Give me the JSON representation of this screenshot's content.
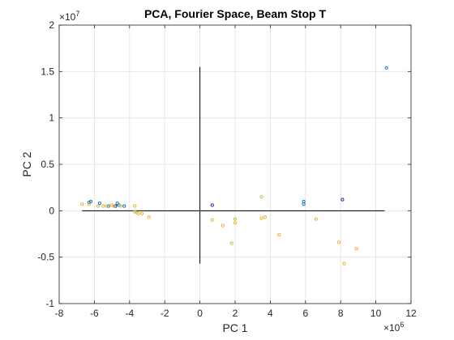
{
  "chart_data": {
    "type": "scatter",
    "title": "PCA, Fourier Space, Beam Stop T",
    "xlabel": "PC 1",
    "ylabel": "PC 2",
    "x_exponent_label": "×10",
    "x_exponent": "6",
    "y_exponent_label": "×10",
    "y_exponent": "7",
    "xlim": [
      -8,
      12
    ],
    "ylim": [
      -1,
      2
    ],
    "x_ticks": [
      -8,
      -6,
      -4,
      -2,
      0,
      2,
      4,
      6,
      8,
      10,
      12
    ],
    "y_ticks": [
      -1,
      -0.5,
      0,
      0.5,
      1,
      1.5,
      2
    ],
    "x_tick_labels": [
      "-8",
      "-6",
      "-4",
      "-2",
      "0",
      "2",
      "4",
      "6",
      "8",
      "10",
      "12"
    ],
    "y_tick_labels": [
      "-1",
      "-0.5",
      "0",
      "0.5",
      "1",
      "1.5",
      "2"
    ],
    "grid": true,
    "reference_lines": [
      {
        "orientation": "horizontal",
        "y": 0,
        "x_from": -6.7,
        "x_to": 10.5
      },
      {
        "orientation": "vertical",
        "x": 0,
        "y_from": -0.57,
        "y_to": 1.55
      }
    ],
    "series": [
      {
        "color": "#0072BD",
        "points": [
          [
            -6.3,
            0.09
          ],
          [
            -6.2,
            0.1
          ],
          [
            -5.7,
            0.08
          ],
          [
            -5.2,
            0.05
          ],
          [
            -4.7,
            0.08
          ],
          [
            -4.6,
            0.06
          ],
          [
            -4.3,
            0.05
          ],
          [
            5.9,
            0.07
          ],
          [
            5.9,
            0.1
          ],
          [
            10.6,
            1.54
          ]
        ]
      },
      {
        "color": "#0D1DA8",
        "points": [
          [
            0.7,
            0.06
          ],
          [
            8.1,
            0.12
          ],
          [
            -4.8,
            0.05
          ]
        ]
      },
      {
        "color": "#EDB120",
        "points": [
          [
            -6.7,
            0.07
          ],
          [
            -6.3,
            0.07
          ],
          [
            -5.5,
            0.05
          ],
          [
            -5.3,
            0.05
          ],
          [
            -5.0,
            0.06
          ],
          [
            -4.9,
            0.05
          ],
          [
            -4.5,
            0.05
          ],
          [
            -3.7,
            0.05
          ],
          [
            -3.6,
            -0.02
          ],
          [
            -3.5,
            -0.03
          ],
          [
            -3.3,
            -0.03
          ],
          [
            -2.9,
            -0.07
          ],
          [
            0.7,
            -0.1
          ],
          [
            1.3,
            -0.16
          ],
          [
            2.0,
            -0.13
          ],
          [
            3.5,
            -0.08
          ],
          [
            3.7,
            -0.07
          ],
          [
            4.5,
            -0.26
          ],
          [
            6.6,
            -0.09
          ],
          [
            7.9,
            -0.34
          ],
          [
            8.2,
            -0.57
          ],
          [
            8.9,
            -0.41
          ]
        ]
      },
      {
        "color": "#B0C24A",
        "points": [
          [
            -5.8,
            0.05
          ],
          [
            -3.7,
            -0.01
          ],
          [
            1.8,
            -0.35
          ],
          [
            2.0,
            -0.09
          ],
          [
            3.5,
            0.15
          ]
        ]
      }
    ]
  }
}
